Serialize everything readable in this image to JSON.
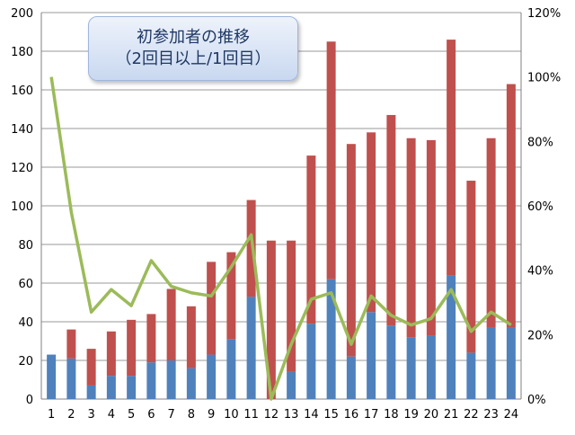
{
  "chart_data": {
    "type": "bar",
    "stacked": true,
    "title_lines": [
      "初参加者の推移",
      "（2回目以上/1回目）"
    ],
    "categories": [
      "1",
      "2",
      "3",
      "4",
      "5",
      "6",
      "7",
      "8",
      "9",
      "10",
      "11",
      "12",
      "13",
      "14",
      "15",
      "16",
      "17",
      "18",
      "19",
      "20",
      "21",
      "22",
      "23",
      "24"
    ],
    "series": [
      {
        "color": "#4f81bd",
        "values": [
          23,
          21,
          7,
          12,
          12,
          19,
          20,
          16,
          23,
          31,
          53,
          0,
          14,
          39,
          62,
          22,
          45,
          38,
          32,
          33,
          64,
          24,
          37,
          37
        ]
      },
      {
        "color": "#c0504d",
        "values": [
          0,
          15,
          19,
          23,
          29,
          25,
          37,
          32,
          48,
          45,
          50,
          82,
          68,
          87,
          123,
          110,
          93,
          109,
          103,
          101,
          122,
          89,
          98,
          126
        ]
      },
      {
        "type": "line",
        "axis": "right",
        "color": "#9bbb59",
        "values": [
          100,
          58,
          27,
          34,
          29,
          43,
          35,
          33,
          32,
          41,
          51,
          0,
          17,
          31,
          33,
          17,
          32,
          26,
          23,
          25,
          34,
          21,
          27,
          23
        ]
      }
    ],
    "ylim": [
      0,
      200
    ],
    "y_ticks": [
      "0",
      "20",
      "40",
      "60",
      "80",
      "100",
      "120",
      "140",
      "160",
      "180",
      "200"
    ],
    "y2lim": [
      0,
      120
    ],
    "y2_ticks": [
      "0%",
      "20%",
      "40%",
      "60%",
      "80%",
      "100%",
      "120%"
    ],
    "grid": "horizontal"
  }
}
